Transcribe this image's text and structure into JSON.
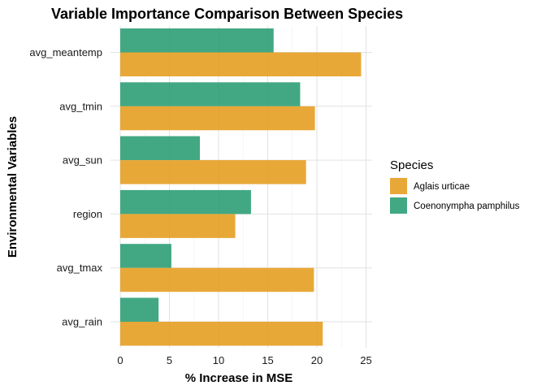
{
  "chart_data": {
    "type": "bar",
    "orientation": "horizontal",
    "title": "Variable Importance Comparison Between Species",
    "xlabel": "% Increase in MSE",
    "ylabel": "Environmental Variables",
    "xlim": [
      0,
      25.5
    ],
    "xticks": [
      0,
      5,
      10,
      15,
      20,
      25
    ],
    "grid": true,
    "legend_position": "right",
    "legend_title": "Species",
    "categories": [
      "avg_meantemp",
      "avg_tmin",
      "avg_sun",
      "region",
      "avg_tmax",
      "avg_rain"
    ],
    "series": [
      {
        "name": "Aglais urticae",
        "color": "#E69F22",
        "values": [
          24.5,
          19.8,
          18.9,
          11.7,
          19.7,
          20.6
        ]
      },
      {
        "name": "Coenonympha pamphilus",
        "color": "#2E9E77",
        "values": [
          15.6,
          18.3,
          8.1,
          13.3,
          5.2,
          3.9
        ]
      }
    ]
  }
}
